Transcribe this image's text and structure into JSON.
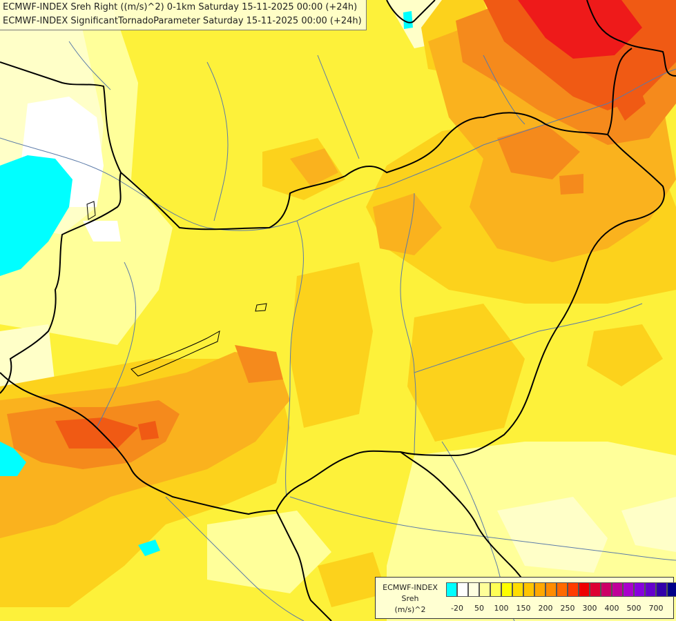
{
  "header": {
    "title_line_1": "ECMWF-INDEX Sreh Right ((m/s)^2) 0-1km Saturday 15-11-2025 00:00 (+24h)",
    "title_line_2": "ECMWF-INDEX SignificantTornadoParameter Saturday 15-11-2025 00:00 (+24h)"
  },
  "legend": {
    "line_1": "ECMWF-INDEX",
    "line_2": "Sreh",
    "line_3": "(m/s)^2",
    "swatch_colors": [
      "#00ffff",
      "#ffffff",
      "#ffffe0",
      "#ffff99",
      "#ffff55",
      "#ffff00",
      "#ffdd00",
      "#ffc400",
      "#ffa800",
      "#ff8c00",
      "#ff6a00",
      "#ff3c00",
      "#ee0000",
      "#dd0033",
      "#cc0066",
      "#c00099",
      "#aa00cc",
      "#8800dd",
      "#6600cc",
      "#3300aa",
      "#000088"
    ],
    "tick_labels": [
      "-20",
      "50",
      "100",
      "150",
      "200",
      "250",
      "300",
      "400",
      "500",
      "700"
    ]
  },
  "colors": {
    "background_yellow": "#fdf13a",
    "light_yellow": "#ffff9a",
    "pale_yellow": "#ffffc8",
    "gold": "#fcd21c",
    "orange": "#fab21e",
    "dark_orange": "#f58a1c",
    "red_orange": "#f05a14",
    "red": "#ee1a1a",
    "cyan": "#00ffff",
    "border_line": "#000000",
    "river_line": "#5a7aa8"
  }
}
